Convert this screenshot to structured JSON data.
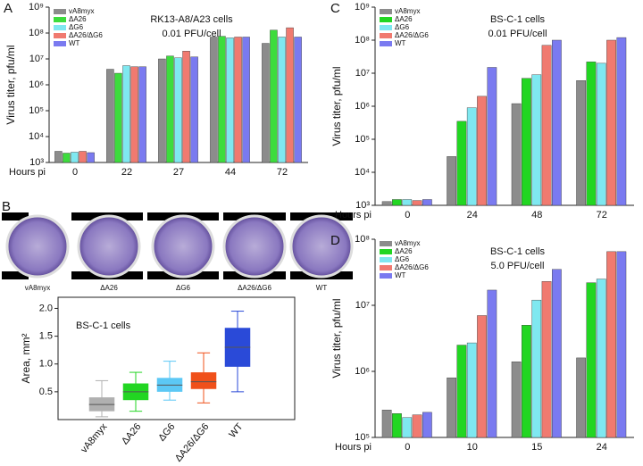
{
  "chart_data": [
    {
      "type": "bar",
      "panel": "A",
      "title": "RK13-A8/A23 cells",
      "subtitle": "0.01 PFU/cell",
      "y_label": "Virus titer, pfu/ml",
      "x_label": "Hours pi",
      "log": true,
      "categories": [
        "0",
        "22",
        "27",
        "44",
        "72"
      ],
      "ylim": [
        1000,
        1000000000
      ],
      "yticks": [
        {
          "value": 1000,
          "label": "10³"
        },
        {
          "value": 10000,
          "label": "10⁴"
        },
        {
          "value": 100000,
          "label": "10⁵"
        },
        {
          "value": 1000000,
          "label": "10⁶"
        },
        {
          "value": 10000000,
          "label": "10⁷"
        },
        {
          "value": 100000000,
          "label": "10⁸"
        },
        {
          "value": 1000000000,
          "label": "10⁹"
        }
      ],
      "legend": "upper left",
      "series": [
        {
          "name": "vA8myx",
          "color": "#8c8c8c",
          "values": [
            2700,
            4000000,
            10000000,
            70000000,
            40000000
          ]
        },
        {
          "name": "ΔA26",
          "color": "#3ddc3d",
          "values": [
            2300,
            2800000,
            13000000,
            75000000,
            130000000
          ]
        },
        {
          "name": "ΔG6",
          "color": "#7fe8f0",
          "values": [
            2500,
            5500000,
            11000000,
            65000000,
            70000000
          ]
        },
        {
          "name": "ΔA26/ΔG6",
          "color": "#f07a70",
          "values": [
            2700,
            5000000,
            20000000,
            70000000,
            160000000
          ]
        },
        {
          "name": "WT",
          "color": "#7a7af0",
          "values": [
            2400,
            5000000,
            12000000,
            70000000,
            70000000
          ]
        }
      ]
    },
    {
      "type": "box",
      "panel": "B",
      "title": "BS-C-1 cells",
      "y_label": "Area, mm²",
      "plaque_labels": [
        "vA8myx",
        "ΔA26",
        "ΔG6",
        "ΔA26/ΔG6",
        "WT"
      ],
      "categories": [
        "vA8myx",
        "ΔA26",
        "ΔG6",
        "ΔA26/ΔG6",
        "WT"
      ],
      "ylim": [
        0,
        2.2
      ],
      "yticks": [
        0.5,
        {
          "value": 1,
          "label": "1.0"
        },
        1.5,
        {
          "value": 2,
          "label": "2.0"
        }
      ],
      "boxes": [
        {
          "color": "#b0b0b0",
          "whislo": 0.05,
          "q1": 0.15,
          "med": 0.27,
          "q3": 0.4,
          "whishi": 0.7
        },
        {
          "color": "#22d622",
          "whislo": 0.15,
          "q1": 0.35,
          "med": 0.5,
          "q3": 0.65,
          "whishi": 0.85
        },
        {
          "color": "#5cc8f5",
          "whislo": 0.35,
          "q1": 0.5,
          "med": 0.62,
          "q3": 0.75,
          "whishi": 1.05
        },
        {
          "color": "#f0501a",
          "whislo": 0.3,
          "q1": 0.55,
          "med": 0.68,
          "q3": 0.85,
          "whishi": 1.2
        },
        {
          "color": "#2a4ad8",
          "whislo": 0.5,
          "q1": 0.95,
          "med": 1.3,
          "q3": 1.65,
          "whishi": 1.95
        }
      ]
    },
    {
      "type": "bar",
      "panel": "C",
      "title": "BS-C-1 cells",
      "subtitle": "0.01 PFU/cell",
      "y_label": "Virus titer, pfu/ml",
      "x_label": "Hours pi",
      "log": true,
      "categories": [
        "0",
        "24",
        "48",
        "72"
      ],
      "ylim": [
        1000,
        1000000000
      ],
      "yticks": [
        {
          "value": 1000,
          "label": "10³"
        },
        {
          "value": 10000,
          "label": "10⁴"
        },
        {
          "value": 100000,
          "label": "10⁵"
        },
        {
          "value": 1000000,
          "label": "10⁶"
        },
        {
          "value": 10000000,
          "label": "10⁷"
        },
        {
          "value": 100000000,
          "label": "10⁸"
        },
        {
          "value": 1000000000,
          "label": "10⁹"
        }
      ],
      "legend": "upper left",
      "series": [
        {
          "name": "vA8myx",
          "color": "#8c8c8c",
          "values": [
            1300,
            30000,
            1200000,
            6000000
          ]
        },
        {
          "name": "ΔA26",
          "color": "#22d622",
          "values": [
            1500,
            350000,
            7000000,
            22000000
          ]
        },
        {
          "name": "ΔG6",
          "color": "#7fe8f0",
          "values": [
            1500,
            900000,
            9000000,
            20000000
          ]
        },
        {
          "name": "ΔA26/ΔG6",
          "color": "#f07a70",
          "values": [
            1400,
            2000000,
            70000000,
            100000000
          ]
        },
        {
          "name": "WT",
          "color": "#7a7af0",
          "values": [
            1500,
            15000000,
            100000000,
            120000000
          ]
        }
      ]
    },
    {
      "type": "bar",
      "panel": "D",
      "title": "BS-C-1 cells",
      "subtitle": "5.0 PFU/cell",
      "y_label": "Virus titer, pfu/ml",
      "x_label": "Hours pi",
      "log": true,
      "categories": [
        "0",
        "10",
        "15",
        "24"
      ],
      "ylim": [
        100000,
        100000000
      ],
      "yticks": [
        {
          "value": 100000,
          "label": "10⁵"
        },
        {
          "value": 1000000,
          "label": "10⁶"
        },
        {
          "value": 10000000,
          "label": "10⁷"
        },
        {
          "value": 100000000,
          "label": "10⁸"
        }
      ],
      "legend": "upper left",
      "series": [
        {
          "name": "vA8myx",
          "color": "#8c8c8c",
          "values": [
            260000,
            800000,
            1400000,
            1600000
          ]
        },
        {
          "name": "ΔA26",
          "color": "#22d622",
          "values": [
            230000,
            2500000,
            5000000,
            22000000
          ]
        },
        {
          "name": "ΔG6",
          "color": "#7fe8f0",
          "values": [
            200000,
            2700000,
            12000000,
            25000000
          ]
        },
        {
          "name": "ΔA26/ΔG6",
          "color": "#f07a70",
          "values": [
            220000,
            7000000,
            23000000,
            65000000
          ]
        },
        {
          "name": "WT",
          "color": "#7a7af0",
          "values": [
            240000,
            17000000,
            35000000,
            65000000
          ]
        }
      ]
    }
  ]
}
